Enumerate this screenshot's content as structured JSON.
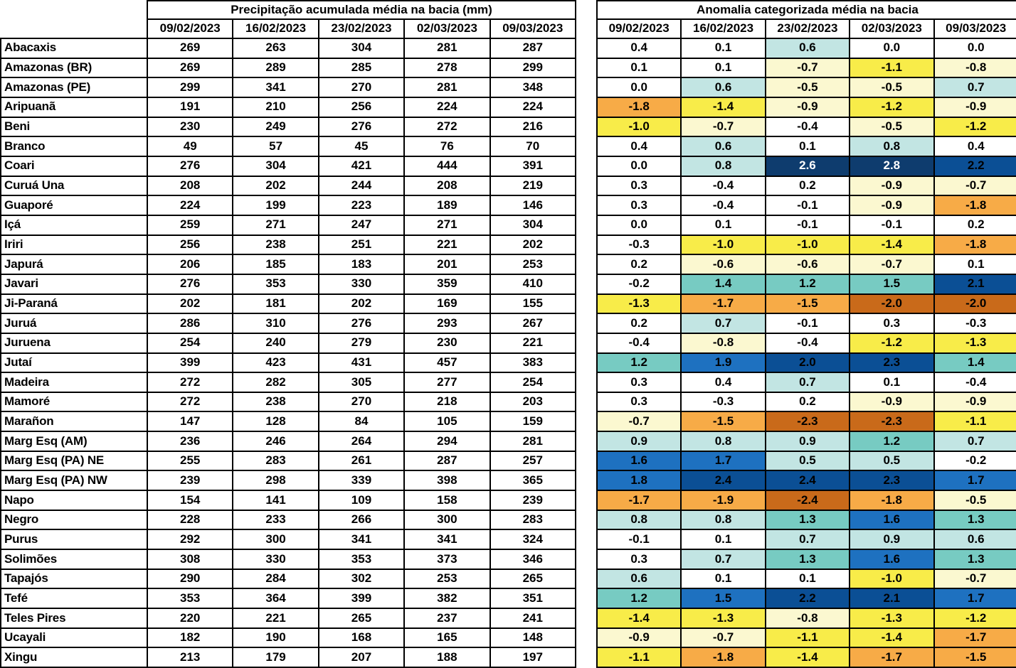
{
  "chart_data": {
    "type": "table",
    "basins": [
      "Abacaxis",
      "Amazonas (BR)",
      "Amazonas (PE)",
      "Aripuanã",
      "Beni",
      "Branco",
      "Coari",
      "Curuá Una",
      "Guaporé",
      "Içá",
      "Iriri",
      "Japurá",
      "Javari",
      "Ji-Paraná",
      "Juruá",
      "Juruena",
      "Jutaí",
      "Madeira",
      "Mamoré",
      "Marañon",
      "Marg Esq (AM)",
      "Marg Esq (PA) NE",
      "Marg Esq (PA) NW",
      "Napo",
      "Negro",
      "Purus",
      "Solimões",
      "Tapajós",
      "Tefé",
      "Teles Pires",
      "Ucayali",
      "Xingu"
    ],
    "tables": [
      {
        "id": "precipitation",
        "title": "Precipitação acumulada média na bacia (mm)",
        "columns": [
          "09/02/2023",
          "16/02/2023",
          "23/02/2023",
          "02/03/2023",
          "09/03/2023"
        ],
        "values": [
          [
            269,
            263,
            304,
            281,
            287
          ],
          [
            269,
            289,
            285,
            278,
            299
          ],
          [
            299,
            341,
            270,
            281,
            348
          ],
          [
            191,
            210,
            256,
            224,
            224
          ],
          [
            230,
            249,
            276,
            272,
            216
          ],
          [
            49,
            57,
            45,
            76,
            70
          ],
          [
            276,
            304,
            421,
            444,
            391
          ],
          [
            208,
            202,
            244,
            208,
            219
          ],
          [
            224,
            199,
            223,
            189,
            146
          ],
          [
            259,
            271,
            247,
            271,
            304
          ],
          [
            256,
            238,
            251,
            221,
            202
          ],
          [
            206,
            185,
            183,
            201,
            253
          ],
          [
            276,
            353,
            330,
            359,
            410
          ],
          [
            202,
            181,
            202,
            169,
            155
          ],
          [
            286,
            310,
            276,
            293,
            267
          ],
          [
            254,
            240,
            279,
            230,
            221
          ],
          [
            399,
            423,
            431,
            457,
            383
          ],
          [
            272,
            282,
            305,
            277,
            254
          ],
          [
            272,
            238,
            270,
            218,
            203
          ],
          [
            147,
            128,
            84,
            105,
            159
          ],
          [
            236,
            246,
            264,
            294,
            281
          ],
          [
            255,
            283,
            261,
            287,
            257
          ],
          [
            239,
            298,
            339,
            398,
            365
          ],
          [
            154,
            141,
            109,
            158,
            239
          ],
          [
            228,
            233,
            266,
            300,
            283
          ],
          [
            292,
            300,
            341,
            341,
            324
          ],
          [
            308,
            330,
            353,
            373,
            346
          ],
          [
            290,
            284,
            302,
            253,
            265
          ],
          [
            353,
            364,
            399,
            382,
            351
          ],
          [
            220,
            221,
            265,
            237,
            241
          ],
          [
            182,
            190,
            168,
            165,
            148
          ],
          [
            213,
            179,
            207,
            188,
            197
          ]
        ]
      },
      {
        "id": "anomaly",
        "title": "Anomalia categorizada média na bacia",
        "columns": [
          "09/02/2023",
          "16/02/2023",
          "23/02/2023",
          "02/03/2023",
          "09/03/2023"
        ],
        "values": [
          [
            0.4,
            0.1,
            0.6,
            0.0,
            0.0
          ],
          [
            0.1,
            0.1,
            -0.7,
            -1.1,
            -0.8
          ],
          [
            0.0,
            0.6,
            -0.5,
            -0.5,
            0.7
          ],
          [
            -1.8,
            -1.4,
            -0.9,
            -1.2,
            -0.9
          ],
          [
            -1.0,
            -0.7,
            -0.4,
            -0.5,
            -1.2
          ],
          [
            0.4,
            0.6,
            0.1,
            0.8,
            0.4
          ],
          [
            0.0,
            0.8,
            2.6,
            2.8,
            2.2
          ],
          [
            0.3,
            -0.4,
            0.2,
            -0.9,
            -0.7
          ],
          [
            0.3,
            -0.4,
            -0.1,
            -0.9,
            -1.8
          ],
          [
            0.0,
            0.1,
            -0.1,
            -0.1,
            0.2
          ],
          [
            -0.3,
            -1.0,
            -1.0,
            -1.4,
            -1.8
          ],
          [
            0.2,
            -0.6,
            -0.6,
            -0.7,
            0.1
          ],
          [
            -0.2,
            1.4,
            1.2,
            1.5,
            2.1
          ],
          [
            -1.3,
            -1.7,
            -1.5,
            -2.0,
            -2.0
          ],
          [
            0.2,
            0.7,
            -0.1,
            0.3,
            -0.3
          ],
          [
            -0.4,
            -0.8,
            -0.4,
            -1.2,
            -1.3
          ],
          [
            1.2,
            1.9,
            2.0,
            2.3,
            1.4
          ],
          [
            0.3,
            0.4,
            0.7,
            0.1,
            -0.4
          ],
          [
            0.3,
            -0.3,
            0.2,
            -0.9,
            -0.9
          ],
          [
            -0.7,
            -1.5,
            -2.3,
            -2.3,
            -1.1
          ],
          [
            0.9,
            0.8,
            0.9,
            1.2,
            0.7
          ],
          [
            1.6,
            1.7,
            0.5,
            0.5,
            -0.2
          ],
          [
            1.8,
            2.4,
            2.4,
            2.3,
            1.7
          ],
          [
            -1.7,
            -1.9,
            -2.4,
            -1.8,
            -0.5
          ],
          [
            0.8,
            0.8,
            1.3,
            1.6,
            1.3
          ],
          [
            -0.1,
            0.1,
            0.7,
            0.9,
            0.6
          ],
          [
            0.3,
            0.7,
            1.3,
            1.6,
            1.3
          ],
          [
            0.6,
            0.1,
            0.1,
            -1.0,
            -0.7
          ],
          [
            1.2,
            1.5,
            2.2,
            2.1,
            1.7
          ],
          [
            -1.4,
            -1.3,
            -0.8,
            -1.3,
            -1.2
          ],
          [
            -0.9,
            -0.7,
            -1.1,
            -1.4,
            -1.7
          ],
          [
            -1.1,
            -1.8,
            -1.4,
            -1.7,
            -1.5
          ]
        ],
        "cell_categories": [
          [
            "W",
            "W",
            "PT",
            "W",
            "W"
          ],
          [
            "W",
            "W",
            "PY",
            "Y",
            "PY"
          ],
          [
            "W",
            "PT",
            "PY",
            "PY",
            "PT"
          ],
          [
            "O",
            "Y",
            "PY",
            "Y",
            "PY"
          ],
          [
            "Y",
            "PY",
            "W",
            "PY",
            "Y"
          ],
          [
            "W",
            "PT",
            "W",
            "PT",
            "W"
          ],
          [
            "W",
            "PT",
            "N",
            "N",
            "DB"
          ],
          [
            "W",
            "W",
            "W",
            "PY",
            "PY"
          ],
          [
            "W",
            "W",
            "W",
            "PY",
            "O"
          ],
          [
            "W",
            "W",
            "W",
            "W",
            "W"
          ],
          [
            "W",
            "Y",
            "Y",
            "Y",
            "O"
          ],
          [
            "W",
            "PY",
            "PY",
            "PY",
            "W"
          ],
          [
            "W",
            "T",
            "T",
            "T",
            "DB"
          ],
          [
            "Y",
            "O",
            "O",
            "DO",
            "DO"
          ],
          [
            "W",
            "PT",
            "W",
            "W",
            "W"
          ],
          [
            "W",
            "PY",
            "W",
            "Y",
            "Y"
          ],
          [
            "T",
            "MB",
            "DB",
            "DB",
            "T"
          ],
          [
            "W",
            "W",
            "PT",
            "W",
            "W"
          ],
          [
            "W",
            "W",
            "W",
            "PY",
            "PY"
          ],
          [
            "PY",
            "O",
            "DO",
            "DO",
            "Y"
          ],
          [
            "PT",
            "PT",
            "PT",
            "T",
            "PT"
          ],
          [
            "MB",
            "MB",
            "PT",
            "PT",
            "W"
          ],
          [
            "MB",
            "DB",
            "DB",
            "DB",
            "MB"
          ],
          [
            "O",
            "O",
            "DO",
            "O",
            "PY"
          ],
          [
            "PT",
            "PT",
            "T",
            "MB",
            "T"
          ],
          [
            "W",
            "W",
            "PT",
            "PT",
            "PT"
          ],
          [
            "W",
            "PT",
            "T",
            "MB",
            "T"
          ],
          [
            "PT",
            "W",
            "W",
            "Y",
            "PY"
          ],
          [
            "T",
            "MB",
            "DB",
            "DB",
            "MB"
          ],
          [
            "Y",
            "Y",
            "PY",
            "Y",
            "Y"
          ],
          [
            "PY",
            "PY",
            "Y",
            "Y",
            "O"
          ],
          [
            "Y",
            "O",
            "Y",
            "O",
            "O"
          ]
        ],
        "palette": {
          "W": {
            "bg": "#ffffff",
            "fg": "#000000"
          },
          "PT": {
            "bg": "#c2e5e3",
            "fg": "#000000"
          },
          "T": {
            "bg": "#77cbc2",
            "fg": "#000000"
          },
          "MB": {
            "bg": "#1e71c0",
            "fg": "#000000"
          },
          "DB": {
            "bg": "#0b4f95",
            "fg": "#000000"
          },
          "N": {
            "bg": "#0e3c6e",
            "fg": "#ffffff"
          },
          "PY": {
            "bg": "#fbf8d0",
            "fg": "#000000"
          },
          "Y": {
            "bg": "#f8ec49",
            "fg": "#000000"
          },
          "O": {
            "bg": "#f7ab47",
            "fg": "#000000"
          },
          "DO": {
            "bg": "#c96a1a",
            "fg": "#000000"
          }
        }
      }
    ]
  }
}
